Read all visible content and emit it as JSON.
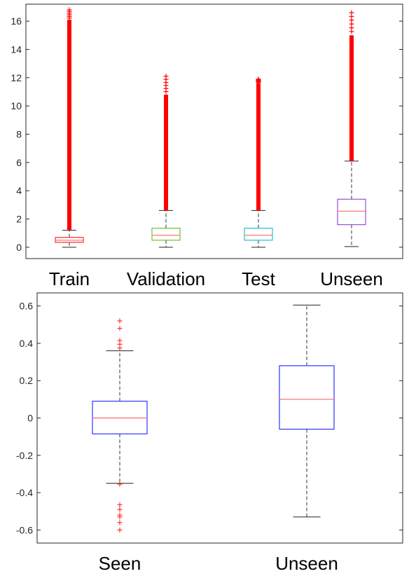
{
  "chart_data": [
    {
      "type": "box",
      "title": "",
      "xlabel": "",
      "ylabel": "",
      "ylim": [
        -0.8,
        17.2
      ],
      "yticks": [
        0,
        2,
        4,
        6,
        8,
        10,
        12,
        14,
        16
      ],
      "ytick_labels": [
        "0",
        "2",
        "4",
        "6",
        "8",
        "10",
        "12",
        "14",
        "16"
      ],
      "categories": [
        "Train",
        "Validation",
        "Test",
        "Unseen"
      ],
      "grid": false,
      "legend": "none",
      "series": [
        {
          "category": "Train",
          "whisker_low": 0.0,
          "q1": 0.35,
          "median": 0.5,
          "q3": 0.7,
          "whisker_high": 1.2,
          "outlier_range": [
            1.2,
            16.1
          ],
          "outlier_max": 16.8,
          "box_color": "#ff2a2a"
        },
        {
          "category": "Validation",
          "whisker_low": 0.0,
          "q1": 0.5,
          "median": 0.85,
          "q3": 1.35,
          "whisker_high": 2.6,
          "outlier_range": [
            2.6,
            10.8
          ],
          "outlier_max": 12.1,
          "box_color": "#6fc23a"
        },
        {
          "category": "Test",
          "whisker_low": 0.0,
          "q1": 0.5,
          "median": 0.85,
          "q3": 1.35,
          "whisker_high": 2.6,
          "outlier_range": [
            2.6,
            11.6
          ],
          "outlier_max": 11.9,
          "box_color": "#22c3c9"
        },
        {
          "category": "Unseen",
          "whisker_low": 0.05,
          "q1": 1.6,
          "median": 2.55,
          "q3": 3.4,
          "whisker_high": 6.1,
          "outlier_range": [
            6.1,
            15.0
          ],
          "outlier_max": 16.6,
          "box_color": "#9a4fd0"
        }
      ],
      "median_color": "#ff8080",
      "outlier_color": "#ff0000"
    },
    {
      "type": "box",
      "title": "",
      "xlabel": "",
      "ylabel": "",
      "ylim": [
        -0.67,
        0.67
      ],
      "yticks": [
        -0.6,
        -0.4,
        -0.2,
        0,
        0.2,
        0.4,
        0.6
      ],
      "ytick_labels": [
        "-0.6",
        "-0.4",
        "-0.2",
        "0",
        "0.2",
        "0.4",
        "0.6"
      ],
      "categories": [
        "Seen",
        "Unseen"
      ],
      "grid": false,
      "legend": "none",
      "series": [
        {
          "category": "Seen",
          "whisker_low": -0.35,
          "q1": -0.085,
          "median": 0.0,
          "q3": 0.09,
          "whisker_high": 0.36,
          "outliers": [
            0.52,
            0.48,
            0.415,
            0.395,
            0.375,
            -0.355,
            -0.465,
            -0.49,
            -0.52,
            -0.53,
            -0.56,
            -0.6
          ],
          "box_color": "#3333ff"
        },
        {
          "category": "Unseen",
          "whisker_low": -0.53,
          "q1": -0.06,
          "median": 0.1,
          "q3": 0.28,
          "whisker_high": 0.605,
          "outliers": [],
          "box_color": "#3333ff"
        }
      ],
      "median_color": "#ff8080",
      "outlier_color": "#ff3333"
    }
  ]
}
